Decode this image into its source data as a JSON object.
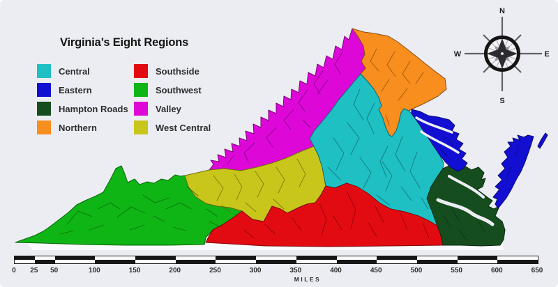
{
  "title": "Virginia’s Eight Regions",
  "regions": {
    "central": {
      "label": "Central",
      "color": "#1EC0C4"
    },
    "eastern": {
      "label": "Eastern",
      "color": "#120FD3"
    },
    "hampton_roads": {
      "label": "Hampton Roads",
      "color": "#164D1E"
    },
    "northern": {
      "label": "Northern",
      "color": "#F78E1E"
    },
    "southside": {
      "label": "Southside",
      "color": "#E30B12"
    },
    "southwest": {
      "label": "Southwest",
      "color": "#0FB515"
    },
    "valley": {
      "label": "Valley",
      "color": "#DD08D8"
    },
    "west_central": {
      "label": "West Central",
      "color": "#C9C61B"
    }
  },
  "compass": {
    "n": "N",
    "e": "E",
    "s": "S",
    "w": "W"
  },
  "scalebar": {
    "ticks": [
      0,
      25,
      50,
      100,
      150,
      200,
      250,
      300,
      350,
      400,
      450,
      500,
      550,
      600,
      650
    ],
    "unit_label": "MILES",
    "bar_dark": "#161616",
    "bar_light": "#FAFAFA"
  },
  "canvas": {
    "background": "#ECEDF3"
  }
}
